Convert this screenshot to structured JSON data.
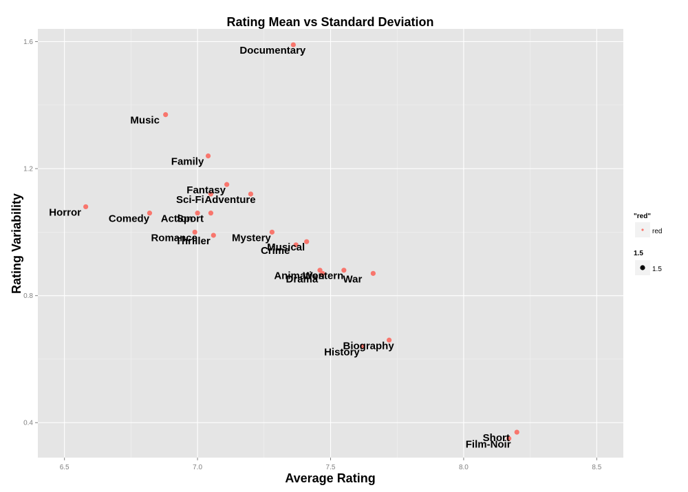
{
  "chart_data": {
    "type": "scatter",
    "title": "Rating Mean vs Standard Deviation",
    "xlabel": "Average Rating",
    "ylabel": "Rating Variability",
    "xlim": [
      6.4,
      8.6
    ],
    "ylim": [
      0.29,
      1.64
    ],
    "xticks": [
      "6.5",
      "7.0",
      "7.5",
      "8.0",
      "8.5"
    ],
    "yticks": [
      "0.4",
      "0.8",
      "1.2",
      "1.6"
    ],
    "grid": true,
    "legend_position": "right",
    "point_color": "#f8766d",
    "points": [
      {
        "label": "Documentary",
        "x": 7.36,
        "y": 1.59
      },
      {
        "label": "Music",
        "x": 6.88,
        "y": 1.37
      },
      {
        "label": "Family",
        "x": 7.04,
        "y": 1.24
      },
      {
        "label": "Fantasy",
        "x": 7.11,
        "y": 1.15
      },
      {
        "label": "Sci-Fi",
        "x": 7.05,
        "y": 1.12
      },
      {
        "label": "Adventure",
        "x": 7.2,
        "y": 1.12
      },
      {
        "label": "Horror",
        "x": 6.58,
        "y": 1.08
      },
      {
        "label": "Comedy",
        "x": 6.82,
        "y": 1.06
      },
      {
        "label": "Action",
        "x": 7.0,
        "y": 1.06
      },
      {
        "label": "Sport",
        "x": 7.05,
        "y": 1.06
      },
      {
        "label": "Romance",
        "x": 6.99,
        "y": 1.0
      },
      {
        "label": "Thriller",
        "x": 7.06,
        "y": 0.99
      },
      {
        "label": "Mystery",
        "x": 7.28,
        "y": 1.0
      },
      {
        "label": "Musical",
        "x": 7.41,
        "y": 0.97
      },
      {
        "label": "Crime",
        "x": 7.37,
        "y": 0.96
      },
      {
        "label": "Animation",
        "x": 7.46,
        "y": 0.88
      },
      {
        "label": "Western",
        "x": 7.55,
        "y": 0.88
      },
      {
        "label": "Drama",
        "x": 7.47,
        "y": 0.87
      },
      {
        "label": "War",
        "x": 7.66,
        "y": 0.87
      },
      {
        "label": "Biography",
        "x": 7.72,
        "y": 0.66
      },
      {
        "label": "History",
        "x": 7.62,
        "y": 0.64
      },
      {
        "label": "Short",
        "x": 8.2,
        "y": 0.37
      },
      {
        "label": "Film-Noir",
        "x": 8.17,
        "y": 0.35
      }
    ],
    "legend": [
      {
        "title": "\"red\"",
        "entry": "red"
      },
      {
        "title": "1.5",
        "entry": "1.5"
      }
    ]
  }
}
